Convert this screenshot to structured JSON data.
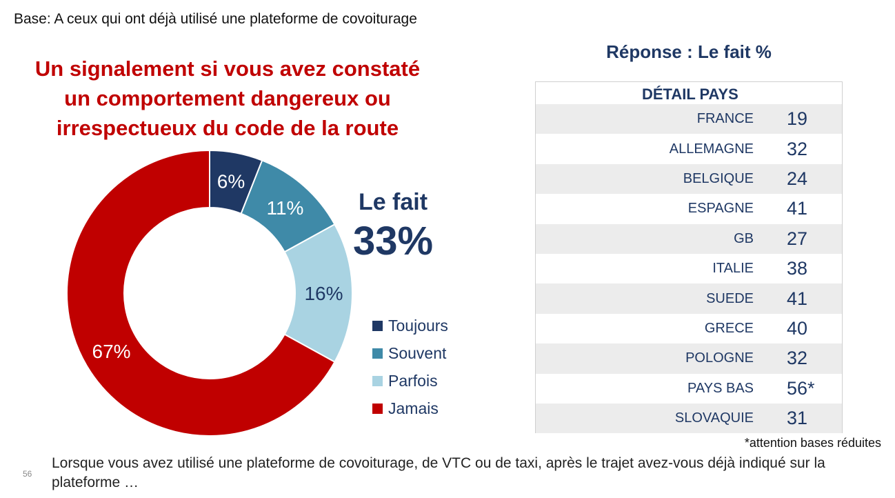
{
  "base_text": "Base: A ceux qui ont déjà utilisé une plateforme de covoiturage",
  "title_lines": [
    "Un signalement si vous avez constaté",
    "un comportement dangereux ou",
    "irrespectueux du code de la route"
  ],
  "le_fait": {
    "label": "Le fait",
    "value": "33%"
  },
  "colors": {
    "toujours": "#1f3864",
    "souvent": "#3f8aa8",
    "parfois": "#a9d3e2",
    "jamais": "#c00000",
    "title": "#c00000",
    "navy": "#1f3864"
  },
  "chart_data": {
    "type": "pie",
    "donut": true,
    "categories": [
      "Toujours",
      "Souvent",
      "Parfois",
      "Jamais"
    ],
    "values": [
      6,
      11,
      16,
      67
    ],
    "labels": [
      "6%",
      "11%",
      "16%",
      "67%"
    ],
    "legend_position": "right"
  },
  "table": {
    "title": "Réponse : Le fait %",
    "header": "DÉTAIL PAYS",
    "rows": [
      {
        "country": "FRANCE",
        "value": "19"
      },
      {
        "country": "ALLEMAGNE",
        "value": "32"
      },
      {
        "country": "BELGIQUE",
        "value": "24"
      },
      {
        "country": "ESPAGNE",
        "value": "41"
      },
      {
        "country": "GB",
        "value": "27"
      },
      {
        "country": "ITALIE",
        "value": "38"
      },
      {
        "country": "SUEDE",
        "value": "41"
      },
      {
        "country": "GRECE",
        "value": "40"
      },
      {
        "country": "POLOGNE",
        "value": "32"
      },
      {
        "country": "PAYS BAS",
        "value": "56*"
      },
      {
        "country": "SLOVAQUIE",
        "value": "31"
      }
    ]
  },
  "note": "*attention bases réduites",
  "page_number": "56",
  "question": "Lorsque vous avez utilisé une plateforme de covoiturage, de VTC ou de taxi, après le trajet avez-vous déjà indiqué sur la plateforme …"
}
